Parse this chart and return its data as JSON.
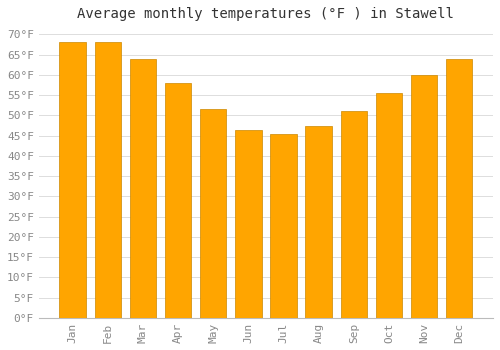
{
  "title": "Average monthly temperatures (°F ) in Stawell",
  "months": [
    "Jan",
    "Feb",
    "Mar",
    "Apr",
    "May",
    "Jun",
    "Jul",
    "Aug",
    "Sep",
    "Oct",
    "Nov",
    "Dec"
  ],
  "values": [
    68,
    68,
    64,
    58,
    51.5,
    46.5,
    45.5,
    47.5,
    51,
    55.5,
    60,
    64
  ],
  "bar_color": "#FFA500",
  "bar_edge_color": "#CC8800",
  "background_color": "#FFFFFF",
  "plot_bg_color": "#FFFFFF",
  "grid_color": "#DDDDDD",
  "ylim": [
    0,
    72
  ],
  "yticks": [
    0,
    5,
    10,
    15,
    20,
    25,
    30,
    35,
    40,
    45,
    50,
    55,
    60,
    65,
    70
  ],
  "title_fontsize": 10,
  "tick_fontsize": 8,
  "tick_color": "#888888",
  "title_color": "#333333",
  "bar_width": 0.75
}
